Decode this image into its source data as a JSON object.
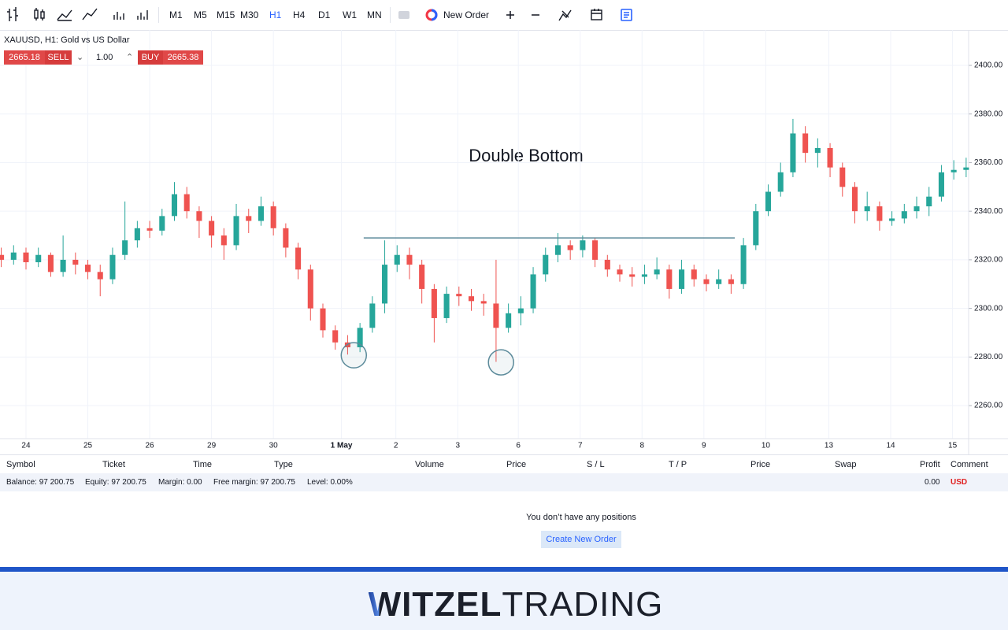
{
  "toolbar": {
    "timeframes": [
      "M1",
      "M5",
      "M15",
      "M30",
      "H1",
      "H4",
      "D1",
      "W1",
      "MN"
    ],
    "active": "H1",
    "new_order": "New Order"
  },
  "trade_panel": {
    "sell_price": "2665.18",
    "sell": "SELL",
    "volume": "1.00",
    "buy": "BUY",
    "buy_price": "2665.38"
  },
  "chart_data": {
    "type": "candlestick",
    "title": "XAUUSD, H1: Gold vs US Dollar",
    "up_color": "#26a69a",
    "down_color": "#ef5350",
    "grid": true,
    "x": [
      0,
      1,
      2,
      3,
      4,
      5,
      6,
      7,
      8,
      9,
      10,
      11,
      12,
      13,
      14,
      15,
      16,
      17,
      18,
      19,
      20,
      21,
      22,
      23,
      24,
      25,
      26,
      27,
      28,
      29,
      30,
      31,
      32,
      33,
      34,
      35,
      36,
      37,
      38,
      39,
      40,
      41,
      42,
      43,
      44,
      45,
      46,
      47,
      48,
      49,
      50,
      51,
      52,
      53,
      54,
      55,
      56,
      57,
      58,
      59,
      60,
      61,
      62,
      63,
      64,
      65,
      66,
      67,
      68,
      69,
      70,
      71,
      72,
      73,
      74,
      75,
      76,
      77,
      78
    ],
    "open": [
      2322,
      2320,
      2323,
      2319,
      2322,
      2315,
      2320,
      2318,
      2315,
      2312,
      2322,
      2328,
      2333,
      2332,
      2338,
      2347,
      2340,
      2336,
      2330,
      2326,
      2338,
      2336,
      2342,
      2333,
      2325,
      2316,
      2300,
      2291,
      2286,
      2284,
      2292,
      2302,
      2318,
      2322,
      2318,
      2308,
      2296,
      2306,
      2305,
      2303,
      2302,
      2292,
      2298,
      2300,
      2314,
      2322,
      2326,
      2324,
      2328,
      2320,
      2316,
      2314,
      2313,
      2314,
      2316,
      2308,
      2316,
      2312,
      2310,
      2312,
      2310,
      2326,
      2340,
      2348,
      2356,
      2372,
      2364,
      2366,
      2358,
      2350,
      2340,
      2342,
      2336,
      2337,
      2340,
      2342,
      2346,
      2356,
      2357
    ],
    "high": [
      2325,
      2326,
      2325,
      2325,
      2323,
      2330,
      2323,
      2320,
      2318,
      2325,
      2344,
      2336,
      2336,
      2341,
      2352,
      2350,
      2342,
      2338,
      2333,
      2343,
      2341,
      2346,
      2344,
      2335,
      2327,
      2318,
      2302,
      2293,
      2289,
      2294,
      2305,
      2328,
      2326,
      2325,
      2320,
      2310,
      2309,
      2309,
      2308,
      2306,
      2320,
      2302,
      2305,
      2317,
      2325,
      2331,
      2328,
      2330,
      2329,
      2322,
      2318,
      2317,
      2318,
      2321,
      2318,
      2320,
      2318,
      2314,
      2316,
      2314,
      2329,
      2343,
      2351,
      2360,
      2378,
      2375,
      2370,
      2368,
      2360,
      2352,
      2348,
      2344,
      2340,
      2343,
      2346,
      2350,
      2359,
      2361,
      2362
    ],
    "low": [
      2317,
      2318,
      2316,
      2317,
      2313,
      2313,
      2314,
      2312,
      2305,
      2310,
      2320,
      2325,
      2329,
      2330,
      2336,
      2337,
      2329,
      2325,
      2320,
      2324,
      2331,
      2334,
      2330,
      2321,
      2312,
      2295,
      2288,
      2283,
      2281,
      2282,
      2290,
      2298,
      2315,
      2312,
      2302,
      2286,
      2294,
      2301,
      2299,
      2297,
      2278,
      2290,
      2293,
      2298,
      2311,
      2319,
      2320,
      2321,
      2317,
      2313,
      2311,
      2309,
      2310,
      2312,
      2304,
      2306,
      2309,
      2307,
      2308,
      2306,
      2308,
      2324,
      2338,
      2346,
      2354,
      2360,
      2358,
      2354,
      2346,
      2335,
      2336,
      2332,
      2334,
      2335,
      2337,
      2338,
      2344,
      2353,
      2354
    ],
    "close": [
      2320,
      2323,
      2319,
      2322,
      2315,
      2320,
      2318,
      2315,
      2312,
      2322,
      2328,
      2333,
      2332,
      2338,
      2347,
      2340,
      2336,
      2330,
      2326,
      2338,
      2336,
      2342,
      2333,
      2325,
      2316,
      2300,
      2291,
      2286,
      2284,
      2292,
      2302,
      2318,
      2322,
      2318,
      2308,
      2296,
      2306,
      2305,
      2303,
      2302,
      2292,
      2298,
      2300,
      2314,
      2322,
      2326,
      2324,
      2328,
      2320,
      2316,
      2314,
      2313,
      2314,
      2316,
      2308,
      2316,
      2312,
      2310,
      2312,
      2310,
      2326,
      2340,
      2348,
      2356,
      2372,
      2364,
      2366,
      2358,
      2350,
      2340,
      2342,
      2336,
      2337,
      2340,
      2342,
      2346,
      2356,
      2357,
      2358
    ],
    "xlim": [
      -0.1,
      78.2
    ],
    "xticks": [
      {
        "value": 2,
        "label": "24"
      },
      {
        "value": 7,
        "label": "25"
      },
      {
        "value": 12,
        "label": "26"
      },
      {
        "value": 17,
        "label": "29"
      },
      {
        "value": 22,
        "label": "30"
      },
      {
        "value": 27.5,
        "label": "1 May"
      },
      {
        "value": 31.9,
        "label": "2"
      },
      {
        "value": 36.9,
        "label": "3"
      },
      {
        "value": 41.8,
        "label": "6"
      },
      {
        "value": 46.8,
        "label": "7"
      },
      {
        "value": 51.8,
        "label": "8"
      },
      {
        "value": 56.8,
        "label": "9"
      },
      {
        "value": 61.8,
        "label": "10"
      },
      {
        "value": 66.9,
        "label": "13"
      },
      {
        "value": 71.9,
        "label": "14"
      },
      {
        "value": 76.9,
        "label": "15"
      }
    ],
    "ylim": [
      2246.4,
      2414.6
    ],
    "yticks": [
      {
        "value": 2260,
        "label": "2260.00"
      },
      {
        "value": 2280,
        "label": "2280.00"
      },
      {
        "value": 2300,
        "label": "2300.00"
      },
      {
        "value": 2320,
        "label": "2320.00"
      },
      {
        "value": 2340,
        "label": "2340.00"
      },
      {
        "value": 2360,
        "label": "2360.00"
      },
      {
        "value": 2380,
        "label": "2380.00"
      },
      {
        "value": 2400,
        "label": "2400.00"
      }
    ],
    "annotation": "Double Bottom",
    "resistance": {
      "value": 2329,
      "x": [
        29.3,
        59.3
      ]
    },
    "markers": [
      {
        "x": 28.5,
        "y": 2280.7
      },
      {
        "x": 40.4,
        "y": 2277.8
      }
    ]
  },
  "positions": {
    "headers": [
      "Symbol",
      "Ticket",
      "Time",
      "Type",
      "Volume",
      "Price",
      "S / L",
      "T / P",
      "Price",
      "Swap",
      "Profit",
      "Comment"
    ],
    "balance": "Balance: 97 200.75",
    "equity": "Equity: 97 200.75",
    "margin": "Margin: 0.00",
    "free_margin": "Free margin: 97 200.75",
    "level": "Level: 0.00%",
    "profit": "0.00",
    "currency": "USD",
    "empty": "You don’t have any positions",
    "button": "Create New Order"
  },
  "footer": {
    "logo_bold": "WITZEL",
    "logo_light": "TRADING"
  }
}
